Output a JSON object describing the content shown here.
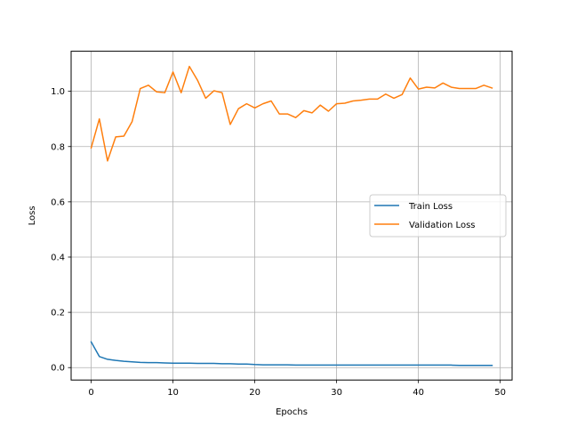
{
  "chart_data": {
    "type": "line",
    "title": "",
    "xlabel": "Epochs",
    "ylabel": "Loss",
    "xlim": [
      -2.45,
      51.45
    ],
    "ylim": [
      -0.045,
      1.145
    ],
    "x_ticks": [
      0,
      10,
      20,
      30,
      40,
      50
    ],
    "y_ticks": [
      0.0,
      0.2,
      0.4,
      0.6,
      0.8,
      1.0
    ],
    "x_tick_labels": [
      "0",
      "10",
      "20",
      "30",
      "40",
      "50"
    ],
    "y_tick_labels": [
      "0.0",
      "0.2",
      "0.4",
      "0.6",
      "0.8",
      "1.0"
    ],
    "grid": true,
    "legend_position": "center-right",
    "x": [
      0,
      1,
      2,
      3,
      4,
      5,
      6,
      7,
      8,
      9,
      10,
      11,
      12,
      13,
      14,
      15,
      16,
      17,
      18,
      19,
      20,
      21,
      22,
      23,
      24,
      25,
      26,
      27,
      28,
      29,
      30,
      31,
      32,
      33,
      34,
      35,
      36,
      37,
      38,
      39,
      40,
      41,
      42,
      43,
      44,
      45,
      46,
      47,
      48,
      49
    ],
    "series": [
      {
        "name": "Train Loss",
        "color": "#1f77b4",
        "values": [
          0.093,
          0.04,
          0.03,
          0.026,
          0.023,
          0.021,
          0.019,
          0.018,
          0.018,
          0.017,
          0.016,
          0.016,
          0.016,
          0.015,
          0.015,
          0.015,
          0.014,
          0.014,
          0.013,
          0.013,
          0.011,
          0.01,
          0.01,
          0.01,
          0.01,
          0.009,
          0.009,
          0.009,
          0.009,
          0.009,
          0.009,
          0.009,
          0.009,
          0.009,
          0.009,
          0.009,
          0.009,
          0.009,
          0.009,
          0.009,
          0.009,
          0.009,
          0.009,
          0.009,
          0.009,
          0.008,
          0.008,
          0.008,
          0.008,
          0.008
        ]
      },
      {
        "name": "Validation Loss",
        "color": "#ff7f0e",
        "values": [
          0.795,
          0.9,
          0.748,
          0.835,
          0.838,
          0.89,
          1.01,
          1.022,
          0.998,
          0.995,
          1.07,
          0.995,
          1.09,
          1.04,
          0.975,
          1.002,
          0.995,
          0.88,
          0.937,
          0.955,
          0.94,
          0.955,
          0.965,
          0.918,
          0.918,
          0.905,
          0.93,
          0.922,
          0.95,
          0.928,
          0.955,
          0.957,
          0.965,
          0.968,
          0.972,
          0.972,
          0.99,
          0.975,
          0.988,
          1.048,
          1.008,
          1.015,
          1.012,
          1.03,
          1.015,
          1.01,
          1.01,
          1.01,
          1.022,
          1.012
        ]
      }
    ]
  }
}
